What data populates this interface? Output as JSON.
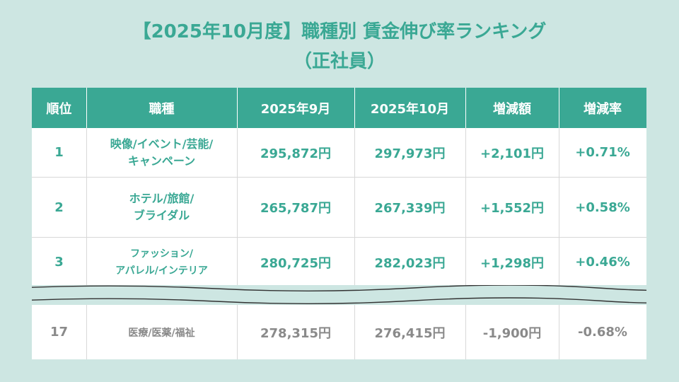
{
  "title": {
    "line1": "【2025年10月度】職種別 賃金伸び率ランキング",
    "line2": "（正社員）"
  },
  "table": {
    "headers": [
      "順位",
      "職種",
      "2025年9月",
      "2025年10月",
      "増減額",
      "増減率"
    ],
    "rows": [
      {
        "rank": "1",
        "job_line1": "映像/イベント/芸能/",
        "job_line2": "キャンペーン",
        "sep": "295,872円",
        "oct": "297,973円",
        "diff": "+2,101円",
        "rate": "+0.71%"
      },
      {
        "rank": "2",
        "job_line1": "ホテル/旅館/",
        "job_line2": "ブライダル",
        "sep": "265,787円",
        "oct": "267,339円",
        "diff": "+1,552円",
        "rate": "+0.58%"
      },
      {
        "rank": "3",
        "job_line1": "ファッション/",
        "job_line2": "アパレル/インテリア",
        "sep": "280,725円",
        "oct": "282,023円",
        "diff": "+1,298円",
        "rate": "+0.46%"
      }
    ],
    "last_row": {
      "rank": "17",
      "job": "医療/医薬/福祉",
      "sep": "278,315円",
      "oct": "276,415円",
      "diff": "-1,900円",
      "rate": "-0.68%"
    }
  },
  "colors": {
    "accent": "#3aa894",
    "background": "#cde6e2",
    "muted_text": "#8a8a8a"
  }
}
